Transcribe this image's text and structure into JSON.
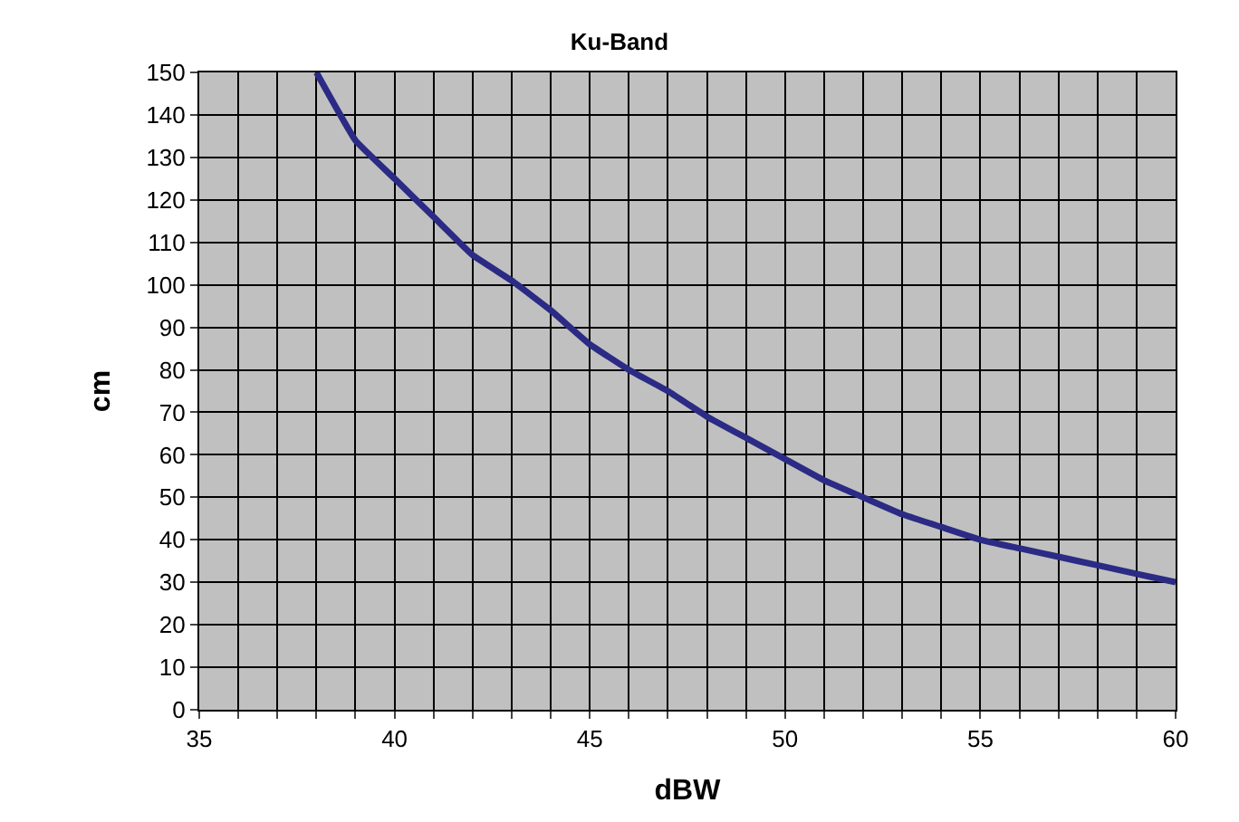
{
  "chart_data": {
    "type": "line",
    "title": "Ku-Band",
    "xlabel": "dBW",
    "ylabel": "cm",
    "x": [
      38,
      39,
      40,
      41,
      42,
      43,
      44,
      45,
      46,
      47,
      48,
      49,
      50,
      51,
      52,
      53,
      54,
      55,
      56,
      57,
      58,
      59,
      60
    ],
    "series": [
      {
        "color": "#2b2b85",
        "values": [
          150,
          134,
          125,
          116,
          107,
          101,
          94,
          86,
          80,
          75,
          69,
          64,
          59,
          54,
          50,
          46,
          43,
          40,
          38,
          36,
          34,
          32,
          30
        ]
      }
    ],
    "xlim": [
      35,
      60
    ],
    "xticks": [
      35,
      {
        "value": 36,
        "label": null
      },
      {
        "value": 37,
        "label": null
      },
      {
        "value": 38,
        "label": null
      },
      {
        "value": 39,
        "label": null
      },
      40,
      {
        "value": 41,
        "label": null
      },
      {
        "value": 42,
        "label": null
      },
      {
        "value": 43,
        "label": null
      },
      {
        "value": 44,
        "label": null
      },
      45,
      {
        "value": 46,
        "label": null
      },
      {
        "value": 47,
        "label": null
      },
      {
        "value": 48,
        "label": null
      },
      {
        "value": 49,
        "label": null
      },
      50,
      {
        "value": 51,
        "label": null
      },
      {
        "value": 52,
        "label": null
      },
      {
        "value": 53,
        "label": null
      },
      {
        "value": 54,
        "label": null
      },
      55,
      {
        "value": 56,
        "label": null
      },
      {
        "value": 57,
        "label": null
      },
      {
        "value": 58,
        "label": null
      },
      {
        "value": 59,
        "label": null
      },
      60
    ],
    "ylim": [
      0,
      150
    ],
    "yticks": [
      0,
      10,
      20,
      30,
      40,
      50,
      60,
      70,
      80,
      90,
      100,
      110,
      120,
      130,
      140,
      150
    ],
    "grid": true,
    "legend": false,
    "marker": "none",
    "line_style": "solid"
  }
}
